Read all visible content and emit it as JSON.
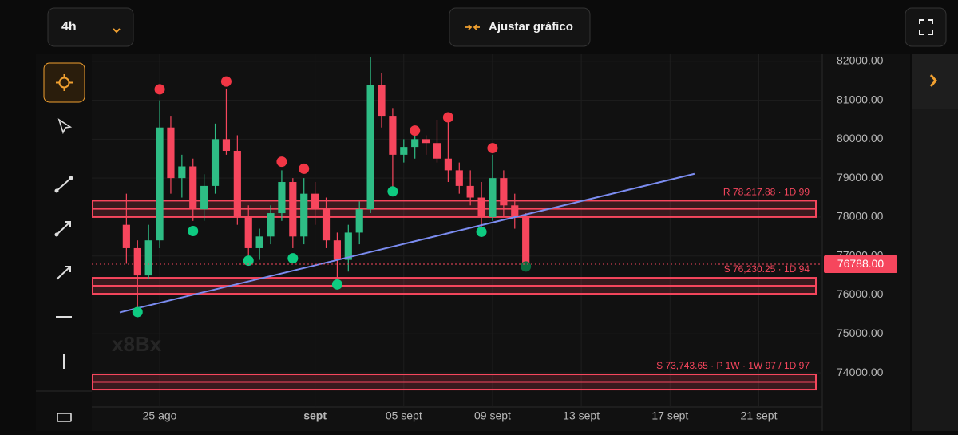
{
  "toolbar": {
    "interval": "4h",
    "adjust_button": "Ajustar gráfico"
  },
  "chart_data": {
    "type": "candlestick",
    "watermark": "x8Bx",
    "xlim": [
      -3.06,
      29.86
    ],
    "ylim": [
      73120,
      82180
    ],
    "xticks": [
      {
        "value": 0,
        "label": "25 ago"
      },
      {
        "value": 7,
        "label": "sept"
      },
      {
        "value": 11,
        "label": "05 sept"
      },
      {
        "value": 15,
        "label": "09 sept"
      },
      {
        "value": 19,
        "label": "13 sept"
      },
      {
        "value": 23,
        "label": "17 sept"
      },
      {
        "value": 27,
        "label": "21 sept"
      }
    ],
    "yticks": [
      {
        "value": 74000,
        "label": "74000.00"
      },
      {
        "value": 75000,
        "label": "75000.00"
      },
      {
        "value": 76000,
        "label": "76000.00"
      },
      {
        "value": 77000,
        "label": "77000.00"
      },
      {
        "value": 78000,
        "label": "78000.00"
      },
      {
        "value": 79000,
        "label": "79000.00"
      },
      {
        "value": 80000,
        "label": "80000.00"
      },
      {
        "value": 81000,
        "label": "81000.00"
      },
      {
        "value": 82000,
        "label": "82000.00"
      }
    ],
    "grid": true,
    "up_color": "#2ebd85",
    "down_color": "#f6465d",
    "candles": [
      {
        "x": -1.5,
        "open": 77800,
        "high": 78600,
        "low": 76800,
        "close": 77200
      },
      {
        "x": -1.0,
        "open": 77200,
        "high": 77400,
        "low": 75550,
        "close": 76500
      },
      {
        "x": -0.5,
        "open": 76500,
        "high": 77800,
        "low": 76400,
        "close": 77400
      },
      {
        "x": 0,
        "open": 77400,
        "high": 81000,
        "low": 77200,
        "close": 80300
      },
      {
        "x": 0.5,
        "open": 80300,
        "high": 80600,
        "low": 78600,
        "close": 79000
      },
      {
        "x": 1,
        "open": 79000,
        "high": 79600,
        "low": 78500,
        "close": 79300
      },
      {
        "x": 1.5,
        "open": 79300,
        "high": 79500,
        "low": 77900,
        "close": 78200
      },
      {
        "x": 2,
        "open": 78200,
        "high": 79100,
        "low": 77900,
        "close": 78800
      },
      {
        "x": 2.5,
        "open": 78800,
        "high": 80400,
        "low": 78600,
        "close": 80000
      },
      {
        "x": 3,
        "open": 80000,
        "high": 81300,
        "low": 79600,
        "close": 79700
      },
      {
        "x": 3.5,
        "open": 79700,
        "high": 80100,
        "low": 77800,
        "close": 78000
      },
      {
        "x": 4,
        "open": 78000,
        "high": 78300,
        "low": 76900,
        "close": 77200
      },
      {
        "x": 4.5,
        "open": 77200,
        "high": 77700,
        "low": 76900,
        "close": 77500
      },
      {
        "x": 5,
        "open": 77500,
        "high": 78300,
        "low": 77300,
        "close": 78100
      },
      {
        "x": 5.5,
        "open": 78100,
        "high": 79200,
        "low": 77900,
        "close": 78900
      },
      {
        "x": 6,
        "open": 78900,
        "high": 79000,
        "low": 77200,
        "close": 77500
      },
      {
        "x": 6.5,
        "open": 77500,
        "high": 79000,
        "low": 77300,
        "close": 78600
      },
      {
        "x": 7,
        "open": 78600,
        "high": 78900,
        "low": 77800,
        "close": 78200
      },
      {
        "x": 7.5,
        "open": 78200,
        "high": 78500,
        "low": 77200,
        "close": 77400
      },
      {
        "x": 8,
        "open": 77400,
        "high": 77600,
        "low": 76400,
        "close": 76900
      },
      {
        "x": 8.5,
        "open": 76900,
        "high": 77800,
        "low": 76600,
        "close": 77600
      },
      {
        "x": 9,
        "open": 77600,
        "high": 78400,
        "low": 77300,
        "close": 78200
      },
      {
        "x": 9.5,
        "open": 78200,
        "high": 82100,
        "low": 78100,
        "close": 81400
      },
      {
        "x": 10,
        "open": 81400,
        "high": 81700,
        "low": 80300,
        "close": 80600
      },
      {
        "x": 10.5,
        "open": 80600,
        "high": 80800,
        "low": 78700,
        "close": 79600
      },
      {
        "x": 11,
        "open": 79600,
        "high": 80000,
        "low": 79400,
        "close": 79800
      },
      {
        "x": 11.5,
        "open": 79800,
        "high": 80300,
        "low": 79500,
        "close": 80000
      },
      {
        "x": 12,
        "open": 80000,
        "high": 80100,
        "low": 79600,
        "close": 79900
      },
      {
        "x": 12.5,
        "open": 79900,
        "high": 80500,
        "low": 79400,
        "close": 79500
      },
      {
        "x": 13,
        "open": 79500,
        "high": 80500,
        "low": 78900,
        "close": 79200
      },
      {
        "x": 13.5,
        "open": 79200,
        "high": 79400,
        "low": 78600,
        "close": 78800
      },
      {
        "x": 14,
        "open": 78800,
        "high": 79200,
        "low": 78300,
        "close": 78500
      },
      {
        "x": 14.5,
        "open": 78500,
        "high": 78900,
        "low": 77500,
        "close": 78000
      },
      {
        "x": 15,
        "open": 78000,
        "high": 79600,
        "low": 77900,
        "close": 79000
      },
      {
        "x": 15.5,
        "open": 79000,
        "high": 79200,
        "low": 78000,
        "close": 78300
      },
      {
        "x": 16,
        "open": 78300,
        "high": 78600,
        "low": 77700,
        "close": 78000
      },
      {
        "x": 16.5,
        "open": 78000,
        "high": 78100,
        "low": 76650,
        "close": 76788
      }
    ],
    "signals": [
      {
        "x": 0,
        "value": 81280,
        "color": "#f23645"
      },
      {
        "x": 3,
        "value": 81480,
        "color": "#f23645"
      },
      {
        "x": 5.5,
        "value": 79420,
        "color": "#f23645"
      },
      {
        "x": 6.5,
        "value": 79240,
        "color": "#f23645"
      },
      {
        "x": 11.5,
        "value": 80220,
        "color": "#f23645"
      },
      {
        "x": 13,
        "value": 80560,
        "color": "#f23645"
      },
      {
        "x": 15,
        "value": 79770,
        "color": "#f23645"
      },
      {
        "x": -1.0,
        "value": 75560,
        "color": "#0ecb81"
      },
      {
        "x": 1.5,
        "value": 77640,
        "color": "#0ecb81"
      },
      {
        "x": 4,
        "value": 76880,
        "color": "#0ecb81"
      },
      {
        "x": 6,
        "value": 76940,
        "color": "#0ecb81"
      },
      {
        "x": 8,
        "value": 76270,
        "color": "#0ecb81"
      },
      {
        "x": 10.5,
        "value": 78660,
        "color": "#0ecb81"
      },
      {
        "x": 14.5,
        "value": 77620,
        "color": "#0ecb81"
      },
      {
        "x": 16.5,
        "value": 76730,
        "color": "#0a6b3e"
      }
    ],
    "zones": [
      {
        "label": "R 78,217.88 · 1D 99",
        "low": 78000,
        "high": 78420,
        "color": "#f6465d"
      },
      {
        "label": "S 76,230.25 · 1D 94",
        "low": 76030,
        "high": 76440,
        "color": "#f6465d"
      },
      {
        "label": "S 73,743.65 · P 1W · 1W 97 / 1D 97",
        "low": 73570,
        "high": 73960,
        "color": "#f6465d"
      }
    ],
    "trendline": {
      "x": [
        -1.8,
        24.1
      ],
      "y": [
        75550,
        79110
      ],
      "color": "#7b8cf0"
    },
    "current_price": {
      "value": 76788,
      "label": "76788.00",
      "color": "#f6465d"
    }
  }
}
